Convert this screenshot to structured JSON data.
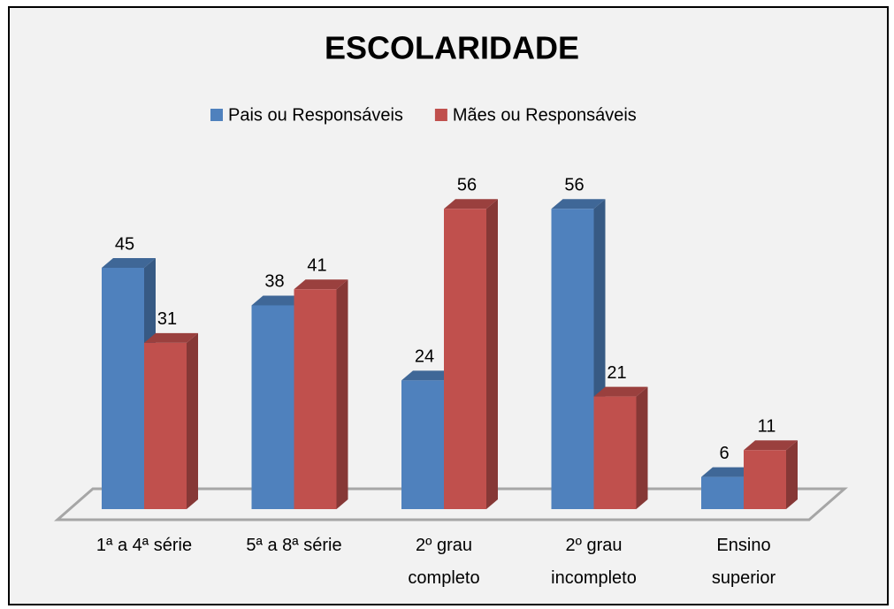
{
  "chart_data": {
    "type": "bar3d",
    "title": "ESCOLARIDADE",
    "categories": [
      "1ª a 4ª série",
      "5ª a 8ª série",
      "2º grau completo",
      "2º grau incompleto",
      "Ensino superior"
    ],
    "series": [
      {
        "name": "Pais ou Responsáveis",
        "color": "#4f81bd",
        "values": [
          45,
          38,
          24,
          56,
          6
        ]
      },
      {
        "name": "Mães ou Responsáveis",
        "color": "#c0504d",
        "values": [
          31,
          41,
          56,
          21,
          11
        ]
      }
    ],
    "ylim": [
      0,
      60
    ],
    "legend": "top"
  }
}
